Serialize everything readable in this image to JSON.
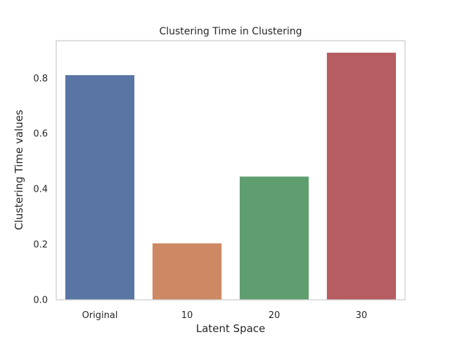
{
  "chart_data": {
    "type": "bar",
    "title": "Clustering Time in Clustering",
    "xlabel": "Latent Space",
    "ylabel": "Clustering Time values",
    "categories": [
      "Original",
      "10",
      "20",
      "30"
    ],
    "values": [
      0.812,
      0.205,
      0.446,
      0.893
    ],
    "colors": [
      "#5975a4",
      "#cc8963",
      "#5f9e6e",
      "#b55d60"
    ],
    "ylim": [
      0,
      0.935
    ],
    "yticks": [
      0.0,
      0.2,
      0.4,
      0.6,
      0.8
    ],
    "ytick_labels": [
      "0.0",
      "0.2",
      "0.4",
      "0.6",
      "0.8"
    ],
    "grid": false,
    "legend": "none"
  }
}
